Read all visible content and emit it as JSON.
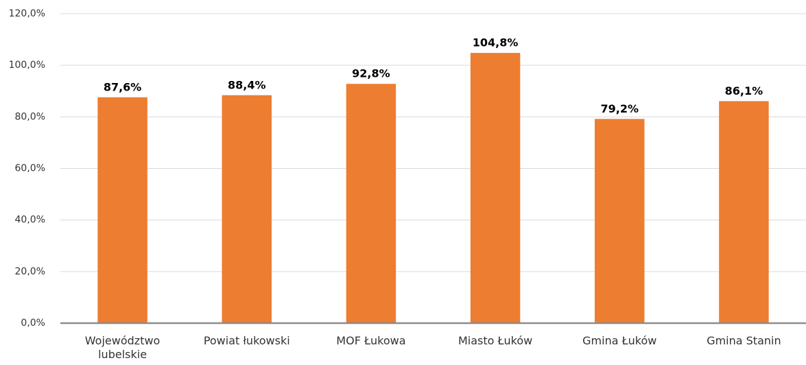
{
  "chart_data": {
    "type": "bar",
    "categories": [
      "Województwo lubelskie",
      "Powiat łukowski",
      "MOF Łukowa",
      "Miasto Łuków",
      "Gmina Łuków",
      "Gmina Stanin"
    ],
    "values": [
      87.6,
      88.4,
      92.8,
      104.8,
      79.2,
      86.1
    ],
    "value_labels": [
      "87,6%",
      "88,4%",
      "92,8%",
      "104,8%",
      "79,2%",
      "86,1%"
    ],
    "color": "#ed7d31",
    "ylim": [
      0,
      120
    ],
    "yticks": [
      {
        "value": 0,
        "label": "0,0%"
      },
      {
        "value": 20,
        "label": "20,0%"
      },
      {
        "value": 40,
        "label": "40,0%"
      },
      {
        "value": 60,
        "label": "60,0%"
      },
      {
        "value": 80,
        "label": "80,0%"
      },
      {
        "value": 100,
        "label": "100,0%"
      },
      {
        "value": 120,
        "label": "120,0%"
      }
    ],
    "grid": true
  }
}
